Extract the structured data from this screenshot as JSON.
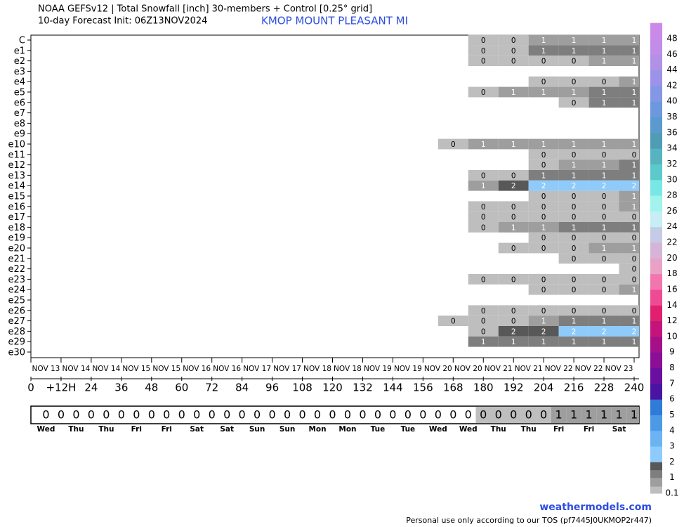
{
  "chart_data": {
    "type": "heatmap",
    "title": "NOAA GEFSv12 | Total Snowfall [inch]  30-members + Control [0.25° grid]",
    "subtitle": "10-day Forecast Init: 06Z13NOV2024",
    "location": "KMOP  MOUNT PLEASANT  MI",
    "source": "weathermodels.com",
    "note": "Personal use only according to our TOS (pf7445J0UKMOP2r447)",
    "rows": [
      "C",
      "e1",
      "e2",
      "e3",
      "e4",
      "e5",
      "e6",
      "e7",
      "e8",
      "e9",
      "e10",
      "e11",
      "e12",
      "e13",
      "e14",
      "e15",
      "e16",
      "e17",
      "e18",
      "e19",
      "e20",
      "e21",
      "e22",
      "e23",
      "e24",
      "e25",
      "e26",
      "e27",
      "e28",
      "e29",
      "e30"
    ],
    "x": [
      168,
      180,
      192,
      204,
      216,
      228,
      240
    ],
    "values": [
      [
        null,
        0.3,
        0.3,
        0.8,
        0.8,
        0.8,
        0.8
      ],
      [
        null,
        0.3,
        0.3,
        1.1,
        1.1,
        1.1,
        1.1
      ],
      [
        null,
        0.3,
        0.3,
        0.3,
        0.3,
        0.8,
        0.8
      ],
      [
        null,
        null,
        null,
        null,
        null,
        null,
        null
      ],
      [
        null,
        null,
        null,
        0.3,
        0.3,
        0.3,
        0.8
      ],
      [
        null,
        0.3,
        0.8,
        0.8,
        0.8,
        1.1,
        1.1
      ],
      [
        null,
        null,
        null,
        null,
        0.3,
        1.1,
        1.1
      ],
      [
        null,
        null,
        null,
        null,
        null,
        null,
        null
      ],
      [
        null,
        null,
        null,
        null,
        null,
        null,
        null
      ],
      [
        null,
        null,
        null,
        null,
        null,
        null,
        null
      ],
      [
        0.3,
        0.8,
        0.8,
        0.8,
        0.8,
        0.8,
        0.8
      ],
      [
        null,
        null,
        null,
        0.3,
        0.3,
        0.3,
        0.3
      ],
      [
        null,
        null,
        null,
        0.3,
        0.8,
        0.8,
        1.1
      ],
      [
        null,
        0.3,
        0.3,
        1.1,
        1.1,
        1.1,
        1.1
      ],
      [
        null,
        0.8,
        1.8,
        2.2,
        2.2,
        2.2,
        2.2
      ],
      [
        null,
        null,
        null,
        0.3,
        0.3,
        0.3,
        0.8
      ],
      [
        null,
        0.3,
        0.3,
        0.3,
        0.3,
        0.3,
        0.8
      ],
      [
        null,
        0.3,
        0.3,
        0.3,
        0.3,
        0.3,
        0.3
      ],
      [
        null,
        0.3,
        0.8,
        0.8,
        1.1,
        1.1,
        1.1
      ],
      [
        null,
        null,
        null,
        0.3,
        0.3,
        0.3,
        0.3
      ],
      [
        null,
        null,
        0.3,
        0.3,
        0.3,
        0.8,
        0.8
      ],
      [
        null,
        null,
        null,
        null,
        0.3,
        0.3,
        0.3
      ],
      [
        null,
        null,
        null,
        null,
        null,
        null,
        0.3
      ],
      [
        null,
        0.3,
        0.3,
        0.3,
        0.3,
        0.3,
        0.3
      ],
      [
        null,
        null,
        null,
        0.3,
        0.3,
        0.3,
        0.8
      ],
      [
        null,
        null,
        null,
        null,
        null,
        null,
        null
      ],
      [
        null,
        0.3,
        0.3,
        0.3,
        0.3,
        0.3,
        0.3
      ],
      [
        0.3,
        0.3,
        0.3,
        0.8,
        1.1,
        1.1,
        1.1
      ],
      [
        null,
        0.3,
        1.8,
        1.8,
        2.2,
        2.2,
        2.2
      ],
      [
        null,
        1.1,
        1.1,
        1.1,
        1.1,
        1.1,
        1.1
      ],
      [
        null,
        null,
        null,
        null,
        null,
        null,
        null
      ]
    ],
    "value_labels": [
      [
        null,
        "0",
        "0",
        "1",
        "1",
        "1",
        "1"
      ],
      [
        null,
        "0",
        "0",
        "1",
        "1",
        "1",
        "1"
      ],
      [
        null,
        "0",
        "0",
        "0",
        "0",
        "1",
        "1"
      ],
      [
        null,
        null,
        null,
        null,
        null,
        null,
        null
      ],
      [
        null,
        null,
        null,
        "0",
        "0",
        "0",
        "1"
      ],
      [
        null,
        "0",
        "1",
        "1",
        "1",
        "1",
        "1"
      ],
      [
        null,
        null,
        null,
        null,
        "0",
        "1",
        "1"
      ],
      [
        null,
        null,
        null,
        null,
        null,
        null,
        null
      ],
      [
        null,
        null,
        null,
        null,
        null,
        null,
        null
      ],
      [
        null,
        null,
        null,
        null,
        null,
        null,
        null
      ],
      [
        "0",
        "1",
        "1",
        "1",
        "1",
        "1",
        "1"
      ],
      [
        null,
        null,
        null,
        "0",
        "0",
        "0",
        "0"
      ],
      [
        null,
        null,
        null,
        "0",
        "1",
        "1",
        "1"
      ],
      [
        null,
        "0",
        "0",
        "1",
        "1",
        "1",
        "1"
      ],
      [
        null,
        "1",
        "2",
        "2",
        "2",
        "2",
        "2"
      ],
      [
        null,
        null,
        null,
        "0",
        "0",
        "0",
        "1"
      ],
      [
        null,
        "0",
        "0",
        "0",
        "0",
        "0",
        "1"
      ],
      [
        null,
        "0",
        "0",
        "0",
        "0",
        "0",
        "0"
      ],
      [
        null,
        "0",
        "1",
        "1",
        "1",
        "1",
        "1"
      ],
      [
        null,
        null,
        null,
        "0",
        "0",
        "0",
        "0"
      ],
      [
        null,
        null,
        "0",
        "0",
        "0",
        "1",
        "1"
      ],
      [
        null,
        null,
        null,
        null,
        "0",
        "0",
        "0"
      ],
      [
        null,
        null,
        null,
        null,
        null,
        null,
        "0"
      ],
      [
        null,
        "0",
        "0",
        "0",
        "0",
        "0",
        "0"
      ],
      [
        null,
        null,
        null,
        "0",
        "0",
        "0",
        "1"
      ],
      [
        null,
        null,
        null,
        null,
        null,
        null,
        null
      ],
      [
        null,
        "0",
        "0",
        "0",
        "0",
        "0",
        "0"
      ],
      [
        "0",
        "0",
        "0",
        "1",
        "1",
        "1",
        "1"
      ],
      [
        null,
        "0",
        "2",
        "2",
        "2",
        "2",
        "2"
      ],
      [
        null,
        "1",
        "1",
        "1",
        "1",
        "1",
        "1"
      ],
      [
        null,
        null,
        null,
        null,
        null,
        null,
        null
      ]
    ],
    "dates": [
      "NOV 13",
      "NOV 14",
      "NOV 14",
      "NOV 15",
      "NOV 15",
      "NOV 16",
      "NOV 16",
      "NOV 17",
      "NOV 17",
      "NOV 18",
      "NOV 18",
      "NOV 19",
      "NOV 19",
      "NOV 20",
      "NOV 20",
      "NOV 21",
      "NOV 21",
      "NOV 22",
      "NOV 22",
      "NOV 23"
    ],
    "xlim": [
      0,
      240
    ],
    "xticks": [
      0,
      {
        "value": 12,
        "label": "+12H"
      },
      24,
      36,
      48,
      60,
      72,
      84,
      96,
      108,
      120,
      132,
      144,
      156,
      168,
      180,
      192,
      204,
      216,
      228,
      240
    ],
    "mean_strip": {
      "x": [
        6,
        12,
        18,
        24,
        30,
        36,
        42,
        48,
        54,
        60,
        66,
        72,
        78,
        84,
        90,
        96,
        102,
        108,
        114,
        120,
        126,
        132,
        138,
        144,
        150,
        156,
        162,
        168,
        174,
        180,
        186,
        192,
        198,
        204,
        210,
        216,
        222,
        228,
        234,
        240
      ],
      "values": [
        0,
        0,
        0,
        0,
        0,
        0,
        0,
        0,
        0,
        0,
        0,
        0,
        0,
        0,
        0,
        0,
        0,
        0,
        0,
        0,
        0,
        0,
        0,
        0,
        0,
        0,
        0,
        0,
        0,
        0.2,
        0.3,
        0.3,
        0.4,
        0.4,
        0.6,
        0.7,
        0.7,
        0.8,
        0.8,
        0.8
      ],
      "value_labels": [
        "0",
        "0",
        "0",
        "0",
        "0",
        "0",
        "0",
        "0",
        "0",
        "0",
        "0",
        "0",
        "0",
        "0",
        "0",
        "0",
        "0",
        "0",
        "0",
        "0",
        "0",
        "0",
        "0",
        "0",
        "0",
        "0",
        "0",
        "0",
        "0",
        "0",
        "0",
        "0",
        "0",
        "0",
        "1",
        "1",
        "1",
        "1",
        "1",
        "1"
      ],
      "days": [
        "Wed",
        "Thu",
        "Thu",
        "Fri",
        "Fri",
        "Sat",
        "Sat",
        "Sun",
        "Sun",
        "Mon",
        "Mon",
        "Tue",
        "Tue",
        "Wed",
        "Wed",
        "Thu",
        "Thu",
        "Fri",
        "Fri",
        "Sat"
      ]
    },
    "colorbar": {
      "levels": [
        0.1,
        0.5,
        1,
        1.5,
        2,
        3,
        4,
        5,
        6,
        7,
        8,
        9,
        10,
        12,
        14,
        16,
        18,
        20,
        22,
        24,
        26,
        28,
        30,
        32,
        34,
        36,
        38,
        40,
        42,
        44,
        46,
        48,
        50
      ],
      "colors": [
        "#bebebe",
        "#9e9e9e",
        "#7e7e7e",
        "#585858",
        "#8ecbfb",
        "#6cb3f4",
        "#4c9ae6",
        "#2f7bd6",
        "#4a14a2",
        "#6a0fa0",
        "#8a0e96",
        "#a3108a",
        "#c4147c",
        "#e0206f",
        "#ef4a94",
        "#f276ae",
        "#e9a2c6",
        "#d6b4d8",
        "#c4cbe6",
        "#c6eef4",
        "#a2f2ee",
        "#78e8e6",
        "#5ccacc",
        "#55b4c0",
        "#4f9cb4",
        "#5a9acf",
        "#6c98de",
        "#8496e6",
        "#9c93e8",
        "#b190e8",
        "#c18de8",
        "#cc8ae8"
      ],
      "ticks": [
        0.1,
        1,
        2,
        3,
        4,
        5,
        6,
        7,
        8,
        9,
        10,
        12,
        14,
        16,
        18,
        20,
        22,
        24,
        26,
        28,
        30,
        32,
        34,
        36,
        38,
        40,
        42,
        44,
        46,
        48
      ]
    }
  }
}
